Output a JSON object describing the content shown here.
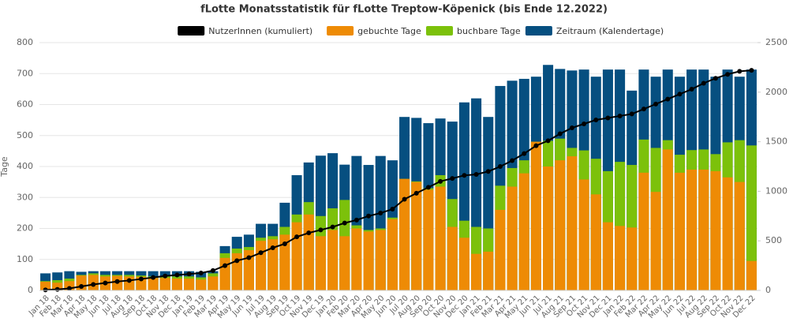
{
  "chart_data": {
    "type": "bar_line",
    "title": "fLotte Monatsstatistik für fLotte Treptow-Köpenick (bis Ende 12.2022)",
    "ylabel": "Tage",
    "categories": [
      "Jan 18",
      "Feb 18",
      "Mar 18",
      "Apr 18",
      "May 18",
      "Jun 18",
      "Jul 18",
      "Aug 18",
      "Sep 18",
      "Oct 18",
      "Nov 18",
      "Dec 18",
      "Jan 19",
      "Feb 19",
      "Mar 19",
      "Apr 19",
      "May 19",
      "Jun 19",
      "Jul 19",
      "Aug 19",
      "Sep 19",
      "Oct 19",
      "Nov 19",
      "Dec 19",
      "Jan 20",
      "Feb 20",
      "Mar 20",
      "Apr 20",
      "May 20",
      "Jun 20",
      "Jul 20",
      "Aug 20",
      "Sep 20",
      "Oct 20",
      "Nov 20",
      "Dec 20",
      "Jan 21",
      "Feb 21",
      "Mar 21",
      "Apr 21",
      "May 21",
      "Jun 21",
      "Jul 21",
      "Aug 21",
      "Sep 21",
      "Oct 21",
      "Nov 21",
      "Dec 21",
      "Jan 22",
      "Feb 22",
      "Mar 22",
      "Apr 22",
      "May 22",
      "Jun 22",
      "Jul 22",
      "Aug 22",
      "Sep 22",
      "Oct 22",
      "Nov 22",
      "Dec 22"
    ],
    "series": [
      {
        "name": "NutzerInnen (kumuliert)",
        "color": "#000000",
        "axis": "y2",
        "kind": "line",
        "values": [
          5,
          10,
          20,
          40,
          60,
          75,
          90,
          100,
          115,
          130,
          145,
          155,
          165,
          175,
          200,
          250,
          300,
          330,
          380,
          430,
          470,
          540,
          580,
          610,
          640,
          680,
          710,
          750,
          780,
          820,
          920,
          980,
          1040,
          1100,
          1130,
          1160,
          1170,
          1200,
          1250,
          1310,
          1380,
          1460,
          1510,
          1580,
          1640,
          1680,
          1720,
          1740,
          1760,
          1780,
          1830,
          1880,
          1930,
          1980,
          2030,
          2090,
          2140,
          2180,
          2210,
          2220
        ]
      },
      {
        "name": "gebuchte Tage",
        "color": "#ee8b05",
        "kind": "bar",
        "values": [
          28,
          25,
          30,
          48,
          50,
          45,
          47,
          45,
          44,
          40,
          40,
          38,
          38,
          35,
          45,
          105,
          120,
          130,
          160,
          165,
          180,
          220,
          245,
          175,
          195,
          175,
          200,
          190,
          195,
          230,
          360,
          350,
          325,
          335,
          205,
          170,
          118,
          125,
          260,
          335,
          378,
          480,
          400,
          420,
          433,
          358,
          310,
          220,
          208,
          203,
          380,
          318,
          455,
          380,
          390,
          390,
          385,
          365,
          350,
          95
        ]
      },
      {
        "name": "buchbare Tage",
        "color": "#7cc10b",
        "kind": "bar",
        "values": [
          30,
          33,
          38,
          50,
          55,
          50,
          50,
          50,
          48,
          45,
          45,
          45,
          45,
          42,
          55,
          120,
          135,
          140,
          170,
          175,
          205,
          245,
          285,
          240,
          265,
          292,
          210,
          195,
          200,
          235,
          360,
          352,
          330,
          372,
          295,
          225,
          205,
          200,
          338,
          395,
          420,
          480,
          483,
          490,
          460,
          452,
          425,
          385,
          415,
          405,
          487,
          460,
          485,
          438,
          453,
          455,
          440,
          478,
          485,
          468
        ]
      },
      {
        "name": "Zeitraum (Kalendertage)",
        "color": "#064f80",
        "kind": "bar",
        "values": [
          55,
          58,
          62,
          60,
          62,
          62,
          62,
          62,
          62,
          62,
          62,
          62,
          62,
          60,
          62,
          143,
          173,
          180,
          215,
          215,
          283,
          372,
          413,
          435,
          443,
          406,
          434,
          405,
          434,
          420,
          560,
          557,
          540,
          555,
          545,
          607,
          620,
          560,
          660,
          677,
          683,
          690,
          728,
          715,
          710,
          713,
          690,
          713,
          713,
          645,
          713,
          690,
          713,
          690,
          713,
          713,
          690,
          713,
          690,
          713
        ]
      }
    ],
    "ylim": [
      0,
      800
    ],
    "yticks": [
      0,
      100,
      200,
      300,
      400,
      500,
      600,
      700,
      800
    ],
    "y2lim": [
      0,
      2500
    ],
    "y2ticks": [
      0,
      500,
      1000,
      1500,
      2000,
      2500
    ],
    "grid": true
  }
}
